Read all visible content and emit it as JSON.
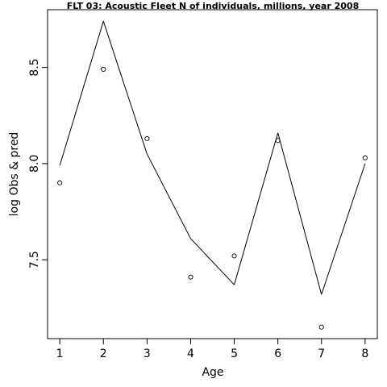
{
  "chart_data": {
    "type": "line",
    "title": "FLT 03: Acoustic Fleet  N of individuals, millions, year 2008",
    "xlabel": "Age",
    "ylabel": "log Obs & pred",
    "x": [
      1,
      2,
      3,
      4,
      5,
      6,
      7,
      8
    ],
    "xticks": [
      "1",
      "2",
      "3",
      "4",
      "5",
      "6",
      "7",
      "8"
    ],
    "yticks": [
      "7.5",
      "8.0",
      "8.5"
    ],
    "xlim": [
      0.72,
      8.28
    ],
    "ylim": [
      7.09,
      8.8
    ],
    "grid": false,
    "legend": "none",
    "series": [
      {
        "kind": "line",
        "values": [
          7.99,
          8.74,
          8.05,
          7.61,
          7.37,
          8.16,
          7.32,
          8.0
        ]
      },
      {
        "kind": "points",
        "values": [
          7.9,
          8.49,
          8.13,
          7.41,
          7.52,
          8.12,
          7.15,
          8.03
        ]
      }
    ],
    "colors": {
      "line": "#000000",
      "points": "#000000",
      "axis": "#000000"
    }
  }
}
